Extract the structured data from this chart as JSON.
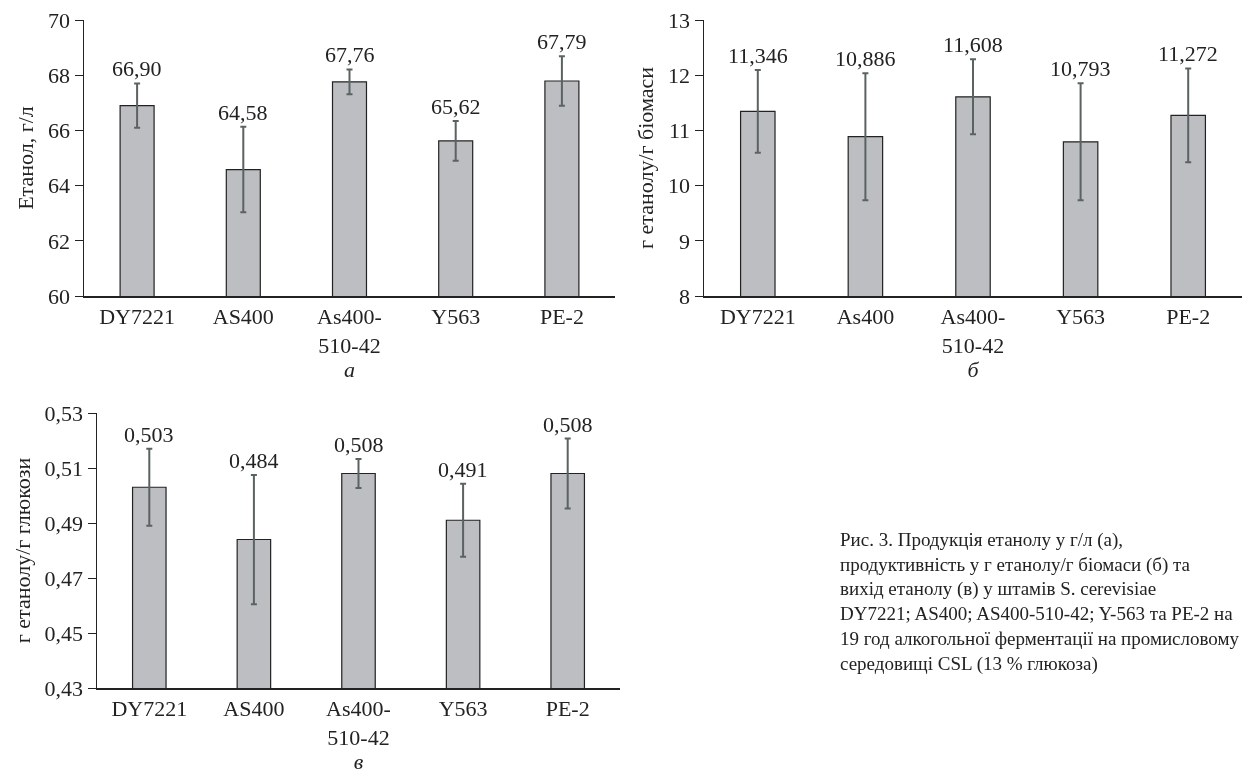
{
  "chart_data": [
    {
      "type": "bar",
      "xlabel": "а",
      "ylabel": "Етанол, г/л",
      "categories": [
        "DY7221",
        "AS400",
        "As400-510-42",
        "Y563",
        "PE-2"
      ],
      "color": "#bdbec2",
      "values": [
        66.9,
        64.58,
        67.76,
        65.62,
        67.79
      ],
      "value_labels": [
        "66,90",
        "64,58",
        "67,76",
        "65,62",
        "67,79"
      ],
      "errors": [
        0.8,
        1.55,
        0.45,
        0.72,
        0.9
      ],
      "ylim": [
        60,
        70
      ],
      "yticks": [
        60,
        62,
        64,
        66,
        68,
        70
      ]
    },
    {
      "type": "bar",
      "xlabel": "б",
      "ylabel": "г етанолу/г біомаси",
      "categories": [
        "DY7221",
        "As400",
        "As400-510-42",
        "Y563",
        "PE-2"
      ],
      "color": "#bdbec2",
      "values": [
        11.346,
        10.886,
        11.608,
        10.793,
        11.272
      ],
      "value_labels": [
        "11,346",
        "10,886",
        "11,608",
        "10,793",
        "11,272"
      ],
      "errors": [
        0.75,
        1.15,
        0.68,
        1.06,
        0.85
      ],
      "ylim": [
        8,
        13
      ],
      "yticks": [
        8,
        9,
        10,
        11,
        12,
        13
      ]
    },
    {
      "type": "bar",
      "xlabel": "в",
      "ylabel": "г етанолу/г глюкози",
      "categories": [
        "DY7221",
        "AS400",
        "As400-510-42",
        "Y563",
        "PE-2"
      ],
      "color": "#bdbec2",
      "values": [
        0.503,
        0.484,
        0.508,
        0.491,
        0.508
      ],
      "value_labels": [
        "0,503",
        "0,484",
        "0,508",
        "0,491",
        "0,508"
      ],
      "errors": [
        0.014,
        0.0235,
        0.0053,
        0.0133,
        0.0127
      ],
      "ylim": [
        0.43,
        0.53
      ],
      "yticks": [
        {
          "value": 0.43,
          "label": "0,43"
        },
        {
          "value": 0.45,
          "label": "0,45"
        },
        {
          "value": 0.47,
          "label": "0,47"
        },
        {
          "value": 0.49,
          "label": "0,49"
        },
        {
          "value": 0.51,
          "label": "0,51"
        },
        {
          "value": 0.53,
          "label": "0,53"
        }
      ],
      "annotations": [
        "Рис. 3. Продукція етанолу у г/л (а), продуктивність у г етанолу/г біомаси (б) та вихід етанолу (в) у штамів S. cerevisiae DY7221; AS400; AS400-510-42; Y-563 та PE-2 на 19 год алкогольної ферментації на промисловому середовищі CSL (13 % глюкоза)"
      ]
    }
  ]
}
